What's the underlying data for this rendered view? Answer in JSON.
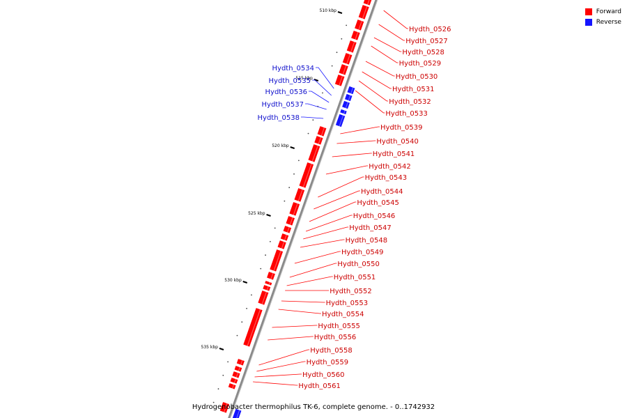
{
  "colors": {
    "forward": "#ff0000",
    "reverse": "#1414ff",
    "backbone": "#888888"
  },
  "legend": [
    {
      "label": "Forward",
      "color": "#ff0000"
    },
    {
      "label": "Reverse",
      "color": "#1414ff"
    }
  ],
  "caption": "Hydrogenobacter thermophilus TK-6, complete genome. - 0..1742932",
  "axis": {
    "ticks": [
      {
        "label": "510 kbp",
        "kbp": 510
      },
      {
        "label": "515 kbp",
        "kbp": 515
      },
      {
        "label": "520 kbp",
        "kbp": 520
      },
      {
        "label": "525 kbp",
        "kbp": 525
      },
      {
        "label": "530 kbp",
        "kbp": 530
      },
      {
        "label": "535 kbp",
        "kbp": 535
      }
    ]
  },
  "forward_genes": [
    "Hydth_0526",
    "Hydth_0527",
    "Hydth_0528",
    "Hydth_0529",
    "Hydth_0530",
    "Hydth_0531",
    "Hydth_0532",
    "Hydth_0533",
    "Hydth_0539",
    "Hydth_0540",
    "Hydth_0541",
    "Hydth_0542",
    "Hydth_0543",
    "Hydth_0544",
    "Hydth_0545",
    "Hydth_0546",
    "Hydth_0547",
    "Hydth_0548",
    "Hydth_0549",
    "Hydth_0550",
    "Hydth_0551",
    "Hydth_0552",
    "Hydth_0553",
    "Hydth_0554",
    "Hydth_0555",
    "Hydth_0556",
    "Hydth_0558",
    "Hydth_0559",
    "Hydth_0560",
    "Hydth_0561"
  ],
  "reverse_genes": [
    "Hydth_0534",
    "Hydth_0535",
    "Hydth_0536",
    "Hydth_0537",
    "Hydth_0538"
  ]
}
